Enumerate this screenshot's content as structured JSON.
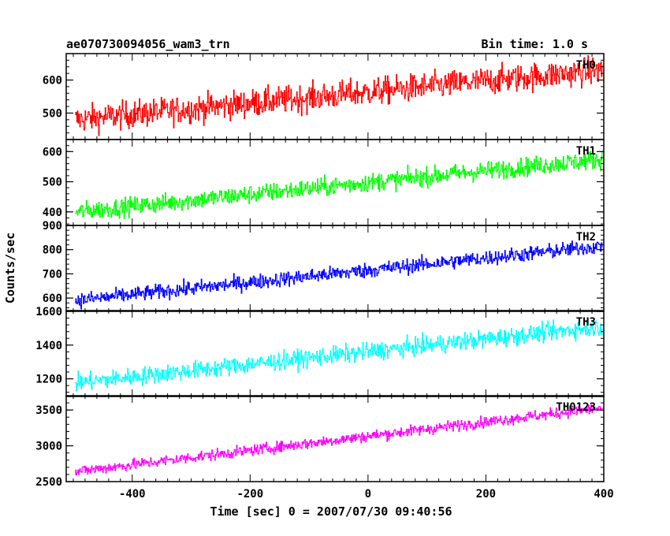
{
  "header": {
    "title": "ae070730094056_wam3_trn",
    "bin_time": "Bin time: 1.0 s"
  },
  "chart_data": {
    "type": "line",
    "xlabel": "Time [sec] 0 = 2007/07/30 09:40:56",
    "ylabel": "Counts/sec",
    "xlim": [
      -512,
      400
    ],
    "x_ticks": [
      -400,
      -200,
      0,
      200,
      400
    ],
    "x_start": -497,
    "x_end": 397,
    "bin": 1.0,
    "panels": [
      {
        "name": "TH0",
        "color": "#ff0000",
        "ylim": [
          420,
          680
        ],
        "y_ticks": [
          500,
          600
        ],
        "start": 480,
        "end": 630,
        "noise": 30
      },
      {
        "name": "TH1",
        "color": "#00ff00",
        "ylim": [
          355,
          640
        ],
        "y_ticks": [
          400,
          500,
          600
        ],
        "start": 400,
        "end": 575,
        "noise": 22
      },
      {
        "name": "TH2",
        "color": "#0000ff",
        "ylim": [
          545,
          900
        ],
        "y_ticks": [
          600,
          700,
          800,
          900
        ],
        "start": 590,
        "end": 815,
        "noise": 22
      },
      {
        "name": "TH3",
        "color": "#00ffff",
        "ylim": [
          1095,
          1605
        ],
        "y_ticks": [
          1200,
          1400,
          1600
        ],
        "start": 1175,
        "end": 1510,
        "noise": 38
      },
      {
        "name": "TH0123",
        "color": "#ff00ff",
        "ylim": [
          2500,
          3700
        ],
        "y_ticks": [
          2500,
          3000,
          3500
        ],
        "start": 2640,
        "end": 3530,
        "noise": 55
      }
    ]
  }
}
